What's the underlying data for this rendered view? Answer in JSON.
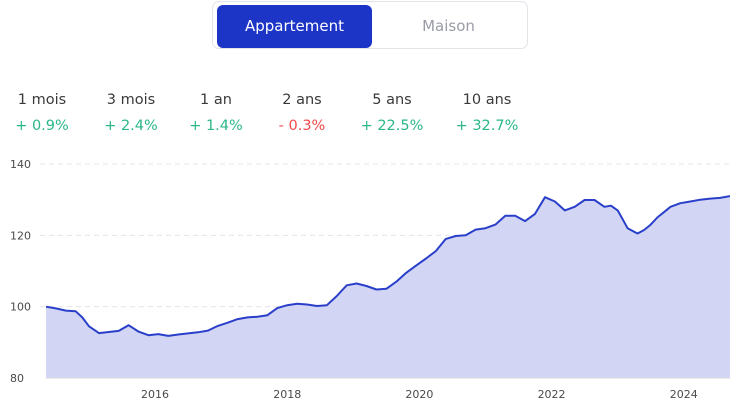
{
  "toggle": {
    "options": [
      "Appartement",
      "Maison"
    ],
    "selected": "Appartement"
  },
  "periods": [
    {
      "label": "1 mois",
      "value": "+ 0.9%",
      "trend": "positive"
    },
    {
      "label": "3 mois",
      "value": "+ 2.4%",
      "trend": "positive"
    },
    {
      "label": "1 an",
      "value": "+ 1.4%",
      "trend": "positive"
    },
    {
      "label": "2 ans",
      "value": "- 0.3%",
      "trend": "negative"
    },
    {
      "label": "5 ans",
      "value": "+ 22.5%",
      "trend": "positive"
    },
    {
      "label": "10 ans",
      "value": "+ 32.7%",
      "trend": "positive"
    }
  ],
  "colors": {
    "accent": "#1c35c7",
    "line": "#2a3fc9",
    "area": "#d2d6f4",
    "positive": "#2bb78a",
    "negative": "#f04a4a"
  },
  "chart_data": {
    "type": "area",
    "x": [
      2014.35,
      2014.5,
      2014.65,
      2014.8,
      2014.9,
      2015.0,
      2015.15,
      2015.3,
      2015.45,
      2015.6,
      2015.75,
      2015.9,
      2016.05,
      2016.2,
      2016.35,
      2016.5,
      2016.65,
      2016.8,
      2016.95,
      2017.1,
      2017.25,
      2017.4,
      2017.55,
      2017.7,
      2017.85,
      2018.0,
      2018.15,
      2018.3,
      2018.45,
      2018.6,
      2018.75,
      2018.9,
      2019.05,
      2019.2,
      2019.35,
      2019.5,
      2019.65,
      2019.8,
      2019.95,
      2020.1,
      2020.25,
      2020.4,
      2020.55,
      2020.7,
      2020.85,
      2021.0,
      2021.15,
      2021.3,
      2021.45,
      2021.6,
      2021.75,
      2021.9,
      2022.05,
      2022.2,
      2022.35,
      2022.5,
      2022.65,
      2022.8,
      2022.9,
      2023.0,
      2023.15,
      2023.3,
      2023.4,
      2023.5,
      2023.6,
      2023.7,
      2023.8,
      2023.95,
      2024.1,
      2024.25,
      2024.4,
      2024.55,
      2024.7
    ],
    "y": [
      100,
      99.5,
      98.9,
      98.7,
      97.0,
      94.5,
      92.6,
      92.9,
      93.2,
      94.8,
      93.0,
      92.0,
      92.3,
      91.8,
      92.2,
      92.5,
      92.8,
      93.3,
      94.6,
      95.5,
      96.5,
      97.0,
      97.2,
      97.6,
      99.6,
      100.4,
      100.8,
      100.6,
      100.2,
      100.4,
      103.0,
      106.0,
      106.5,
      105.8,
      104.8,
      105.0,
      107.0,
      109.5,
      111.5,
      113.5,
      115.6,
      119.0,
      119.8,
      120.0,
      121.6,
      122.0,
      123.0,
      125.5,
      125.5,
      124.0,
      126.0,
      130.7,
      129.5,
      127.0,
      128.0,
      129.9,
      129.9,
      128.0,
      128.3,
      127.0,
      122.0,
      120.5,
      121.5,
      123.0,
      125.0,
      126.5,
      128.0,
      129.0,
      129.5,
      130.0,
      130.3,
      130.5,
      131.0
    ],
    "xticks": [
      2016,
      2018,
      2020,
      2022,
      2024
    ],
    "yticks": [
      80,
      100,
      120,
      140
    ],
    "ylim": [
      80,
      140
    ],
    "grid": true
  }
}
